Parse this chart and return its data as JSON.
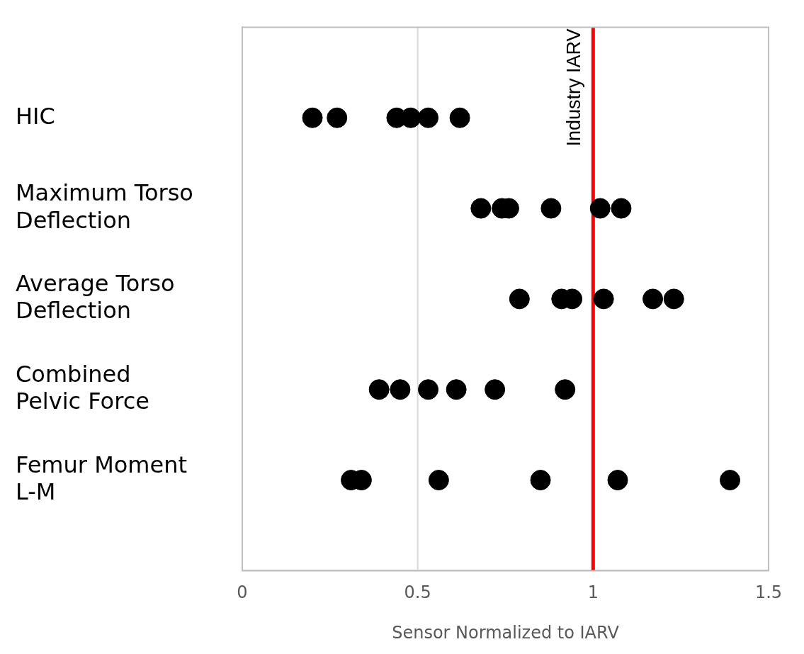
{
  "chart_data": {
    "type": "scatter",
    "orientation": "horizontal",
    "xlabel": "Sensor Normalized to IARV",
    "categories": [
      "HIC",
      "Maximum Torso Deflection",
      "Average Torso Deflection",
      "Combined Pelvic Force",
      "Femur Moment L-M"
    ],
    "series": [
      {
        "color": "#000000",
        "x": [
          "HIC",
          "HIC",
          "HIC",
          "HIC",
          "HIC",
          "HIC"
        ],
        "values": [
          0.2,
          0.27,
          0.44,
          0.48,
          0.53,
          0.62
        ]
      },
      {
        "color": "#000000",
        "x": [
          "Maximum Torso Deflection",
          "Maximum Torso Deflection",
          "Maximum Torso Deflection",
          "Maximum Torso Deflection",
          "Maximum Torso Deflection",
          "Maximum Torso Deflection"
        ],
        "values": [
          0.68,
          0.74,
          0.76,
          0.88,
          1.02,
          1.08
        ]
      },
      {
        "color": "#000000",
        "x": [
          "Average Torso Deflection",
          "Average Torso Deflection",
          "Average Torso Deflection",
          "Average Torso Deflection",
          "Average Torso Deflection",
          "Average Torso Deflection"
        ],
        "values": [
          0.79,
          0.91,
          0.94,
          1.03,
          1.17,
          1.23
        ]
      },
      {
        "color": "#000000",
        "x": [
          "Combined Pelvic Force",
          "Combined Pelvic Force",
          "Combined Pelvic Force",
          "Combined Pelvic Force",
          "Combined Pelvic Force",
          "Combined Pelvic Force"
        ],
        "values": [
          0.39,
          0.45,
          0.53,
          0.61,
          0.72,
          0.92
        ]
      },
      {
        "color": "#000000",
        "x": [
          "Femur Moment L-M",
          "Femur Moment L-M",
          "Femur Moment L-M",
          "Femur Moment L-M",
          "Femur Moment L-M",
          "Femur Moment L-M"
        ],
        "values": [
          0.31,
          0.34,
          0.56,
          0.85,
          1.07,
          1.39
        ]
      }
    ],
    "marker": "circle",
    "xlim": [
      0,
      1.5
    ],
    "xticks": [
      0,
      0.5,
      1,
      1.5
    ],
    "ref_lines": [
      {
        "axis": "x",
        "value": 0.5,
        "color": "#d9d9d9"
      },
      {
        "axis": "x",
        "value": 1,
        "label": "Industry IARV",
        "color": "#ff0000"
      }
    ]
  }
}
